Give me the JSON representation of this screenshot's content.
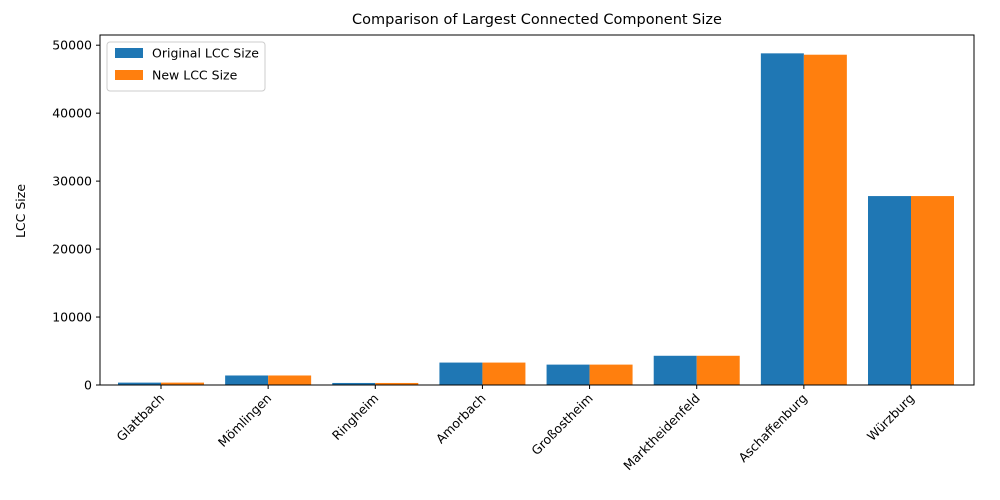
{
  "chart_data": {
    "type": "bar",
    "title": "Comparison of Largest Connected Component Size",
    "xlabel": "",
    "ylabel": "LCC Size",
    "categories": [
      "Glattbach",
      "Mömlingen",
      "Ringheim",
      "Amorbach",
      "Großostheim",
      "Marktheidenfeld",
      "Aschaffenburg",
      "Würzburg"
    ],
    "series": [
      {
        "name": "Original LCC Size",
        "color": "#1f77b4",
        "values": [
          350,
          1400,
          300,
          3300,
          3000,
          4300,
          48800,
          27800
        ]
      },
      {
        "name": "New LCC Size",
        "color": "#ff7f0e",
        "values": [
          350,
          1400,
          300,
          3300,
          3000,
          4300,
          48600,
          27800
        ]
      }
    ],
    "ylim": [
      0,
      51500
    ],
    "yticks": [
      0,
      10000,
      20000,
      30000,
      40000,
      50000
    ],
    "ytick_labels": [
      "0",
      "10000",
      "20000",
      "30000",
      "40000",
      "50000"
    ],
    "legend_position": "top-left",
    "grid": false
  }
}
